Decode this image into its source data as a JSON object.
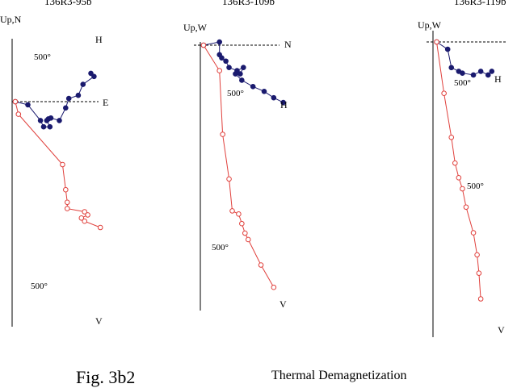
{
  "figure": {
    "caption": "Fig. 3b2",
    "subtitle": "Thermal Demagnetization"
  },
  "colors": {
    "horizontal_series": "#1a1a6e",
    "vertical_series": "#e0403c",
    "axes": "#000000"
  },
  "chart_data": [
    {
      "type": "scatter",
      "title": "136R3-95b",
      "axis_labels": {
        "up": "Up,N",
        "right": "E"
      },
      "series": [
        {
          "name": "H",
          "marker": "filled-circle",
          "points": [
            [
              1,
              0
            ],
            [
              5,
              -1
            ],
            [
              9,
              -6
            ],
            [
              10,
              -8
            ],
            [
              12,
              -8
            ],
            [
              11,
              -6
            ],
            [
              11.5,
              -5.5
            ],
            [
              12.3,
              -5.2
            ],
            [
              15,
              -6
            ],
            [
              17,
              -2
            ],
            [
              18,
              1
            ],
            [
              21,
              2
            ],
            [
              22.5,
              5.5
            ],
            [
              26,
              8
            ],
            [
              25,
              9
            ]
          ]
        },
        {
          "name": "V",
          "marker": "open-circle",
          "points": [
            [
              1,
              0
            ],
            [
              2,
              -4
            ],
            [
              16,
              -20
            ],
            [
              17,
              -28
            ],
            [
              17.5,
              -32
            ],
            [
              17.5,
              -34
            ],
            [
              23,
              -35
            ],
            [
              24,
              -36
            ],
            [
              22,
              -37
            ],
            [
              23,
              -38
            ],
            [
              28,
              -40
            ]
          ]
        }
      ],
      "annotations": [
        {
          "text": "500°",
          "near": "H"
        },
        {
          "text": "500°",
          "near": "V"
        }
      ]
    },
    {
      "type": "scatter",
      "title": "136R3-109b",
      "axis_labels": {
        "up": "Up,W",
        "right": "N"
      },
      "series": [
        {
          "name": "H",
          "marker": "filled-circle",
          "points": [
            [
              1,
              0
            ],
            [
              6,
              1
            ],
            [
              6,
              -3
            ],
            [
              6.7,
              -4
            ],
            [
              8,
              -5
            ],
            [
              9,
              -7
            ],
            [
              11.5,
              -8
            ],
            [
              13.5,
              -7
            ],
            [
              12.5,
              -9
            ],
            [
              11,
              -9
            ],
            [
              13,
              -11
            ],
            [
              16.5,
              -13
            ],
            [
              20,
              -14.5
            ],
            [
              23,
              -16.5
            ],
            [
              26,
              -18
            ]
          ]
        },
        {
          "name": "V",
          "marker": "open-circle",
          "points": [
            [
              1,
              0
            ],
            [
              6,
              -8
            ],
            [
              7,
              -28
            ],
            [
              9,
              -42
            ],
            [
              10,
              -52
            ],
            [
              12,
              -53
            ],
            [
              13,
              -56
            ],
            [
              14,
              -59
            ],
            [
              15,
              -61
            ],
            [
              19,
              -69
            ],
            [
              23,
              -76
            ]
          ]
        }
      ],
      "annotations": [
        {
          "text": "500°",
          "near": "H"
        },
        {
          "text": "500°",
          "near": "V"
        }
      ]
    },
    {
      "type": "scatter",
      "title": "136R3-119b",
      "axis_labels": {
        "up": "Up,W",
        "right": ""
      },
      "series": [
        {
          "name": "H",
          "marker": "filled-circle",
          "points": [
            [
              1,
              0
            ],
            [
              4,
              -2
            ],
            [
              5,
              -7
            ],
            [
              7,
              -8
            ],
            [
              8,
              -8.5
            ],
            [
              11,
              -9
            ],
            [
              13,
              -8
            ],
            [
              15,
              -9
            ],
            [
              16,
              -8
            ]
          ]
        },
        {
          "name": "V",
          "marker": "open-circle",
          "points": [
            [
              1,
              0
            ],
            [
              3,
              -14
            ],
            [
              5,
              -26
            ],
            [
              6,
              -33
            ],
            [
              7,
              -37
            ],
            [
              8,
              -40
            ],
            [
              9,
              -45
            ],
            [
              11,
              -52
            ],
            [
              12,
              -58
            ],
            [
              12.5,
              -63
            ],
            [
              13,
              -70
            ]
          ]
        }
      ],
      "annotations": [
        {
          "text": "500°",
          "near": "H"
        },
        {
          "text": "500°",
          "near": "V"
        }
      ]
    }
  ]
}
